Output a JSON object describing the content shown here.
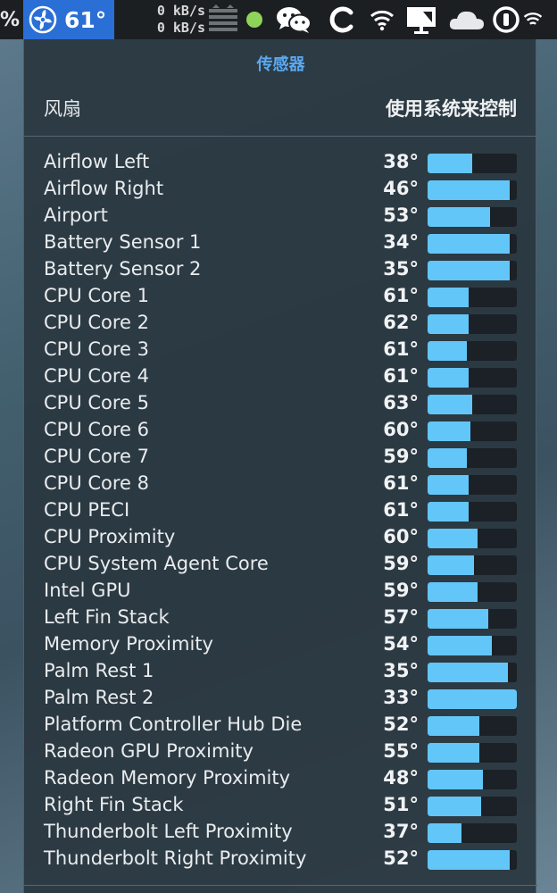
{
  "menubar": {
    "battery_pct_fragment": "%",
    "active_app": {
      "icon": "fan-icon",
      "temperature": "61°"
    },
    "network": {
      "upload": "0 kB/s",
      "download": "0 kB/s"
    },
    "icons": [
      "memory-stack-icon",
      "status-dot-icon",
      "wechat-icon",
      "c-app-icon",
      "wifi-icon",
      "screen-mirror-icon",
      "onedrive-cloud-icon",
      "power-toggle-icon",
      "wifi-icon"
    ],
    "colors": {
      "active_bg": "#2a6fd6",
      "status_dot": "#8ed45a"
    }
  },
  "panel": {
    "title": "传感器",
    "fan_label": "风扇",
    "fan_value": "使用系统来控制",
    "title_color": "#5aa8f2",
    "bar_color": "#63c6f8"
  },
  "sensors": [
    {
      "name": "Airflow Left",
      "temp": "38°",
      "level": 0.5
    },
    {
      "name": "Airflow Right",
      "temp": "46°",
      "level": 0.92
    },
    {
      "name": "Airport",
      "temp": "53°",
      "level": 0.7
    },
    {
      "name": "Battery Sensor 1",
      "temp": "34°",
      "level": 0.92
    },
    {
      "name": "Battery Sensor 2",
      "temp": "35°",
      "level": 0.92
    },
    {
      "name": "CPU Core 1",
      "temp": "61°",
      "level": 0.46
    },
    {
      "name": "CPU Core 2",
      "temp": "62°",
      "level": 0.46
    },
    {
      "name": "CPU Core 3",
      "temp": "61°",
      "level": 0.44
    },
    {
      "name": "CPU Core 4",
      "temp": "61°",
      "level": 0.46
    },
    {
      "name": "CPU Core 5",
      "temp": "63°",
      "level": 0.5
    },
    {
      "name": "CPU Core 6",
      "temp": "60°",
      "level": 0.48
    },
    {
      "name": "CPU Core 7",
      "temp": "59°",
      "level": 0.44
    },
    {
      "name": "CPU Core 8",
      "temp": "61°",
      "level": 0.46
    },
    {
      "name": "CPU PECI",
      "temp": "61°",
      "level": 0.46
    },
    {
      "name": "CPU Proximity",
      "temp": "60°",
      "level": 0.56
    },
    {
      "name": "CPU System Agent Core",
      "temp": "59°",
      "level": 0.52
    },
    {
      "name": "Intel GPU",
      "temp": "59°",
      "level": 0.56
    },
    {
      "name": "Left Fin Stack",
      "temp": "57°",
      "level": 0.68
    },
    {
      "name": "Memory Proximity",
      "temp": "54°",
      "level": 0.72
    },
    {
      "name": "Palm Rest 1",
      "temp": "35°",
      "level": 0.9
    },
    {
      "name": "Palm Rest 2",
      "temp": "33°",
      "level": 1.0
    },
    {
      "name": "Platform Controller Hub Die",
      "temp": "52°",
      "level": 0.58
    },
    {
      "name": "Radeon GPU Proximity",
      "temp": "55°",
      "level": 0.58
    },
    {
      "name": "Radeon Memory Proximity",
      "temp": "48°",
      "level": 0.62
    },
    {
      "name": "Right Fin Stack",
      "temp": "51°",
      "level": 0.6
    },
    {
      "name": "Thunderbolt Left Proximity",
      "temp": "37°",
      "level": 0.38
    },
    {
      "name": "Thunderbolt Right Proximity",
      "temp": "52°",
      "level": 0.92
    }
  ]
}
